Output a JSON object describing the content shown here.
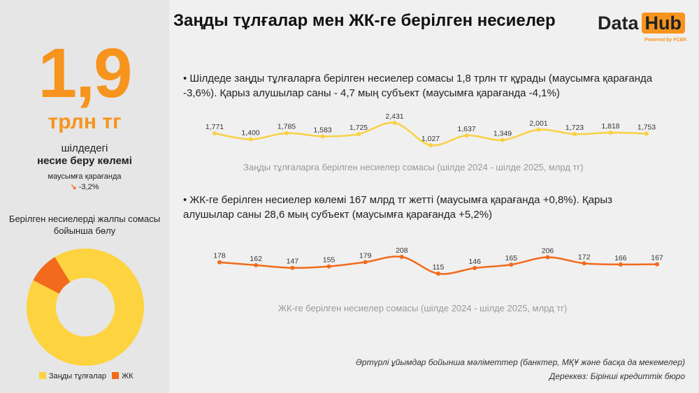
{
  "title": "Заңды тұлғалар мен ЖК-ге берілген несиелер",
  "logo": {
    "data": "Data",
    "hub": "Hub",
    "powered": "Powered by FCBK"
  },
  "kpi": {
    "value": "1,9",
    "unit": "трлн тг",
    "line1": "шілдедегі",
    "line2": "несие беру көлемі",
    "compare": "маусымға қарағанда",
    "change": "-3,2%",
    "arrow": "arrow-down-right-icon"
  },
  "donut_title": "Берілген несиелерді жалпы сомасы бойынша бөлу",
  "bullets": [
    "Шілдеде заңды тұлғаларға берілген несиелер сомасы 1,8 трлн тг құрады (маусымға қарағанда -3,6%). Қарыз алушылар саны - 4,7 мың субъект (маусымға қарағанда -4,1%)",
    "ЖК-ге берілген несиелер көлемі 167 млрд тг жетті (маусымға қарағанда +0,8%). Қарыз алушылар саны 28,6 мың субъект (маусымға қарағанда +5,2%)"
  ],
  "footer": {
    "note": "Әртүрлі ұйымдар бойынша мәліметтер (банктер, МҚҰ және басқа да мекемелер)",
    "source": "Дереккөз: Бірінші кредиттік бюро"
  },
  "chart_data": [
    {
      "type": "line",
      "title": "Заңды тұлғаларға берілген несиелер сомасы (шілде 2024 - шілде 2025, млрд тг)",
      "color": "#f9d142",
      "values": [
        1771,
        1400,
        1785,
        1583,
        1725,
        2431,
        1027,
        1637,
        1349,
        2001,
        1723,
        1818,
        1753
      ],
      "labels": [
        "1,771",
        "1,400",
        "1,785",
        "1,583",
        "1,725",
        "2,431",
        "1,027",
        "1,637",
        "1,349",
        "2,001",
        "1,723",
        "1,818",
        "1,753"
      ]
    },
    {
      "type": "line",
      "title": "ЖК-ге берілген несиелер сомасы (шілде 2024 - шілде 2025, млрд тг)",
      "color": "#f26a1b",
      "values": [
        178,
        162,
        147,
        155,
        179,
        208,
        115,
        146,
        165,
        206,
        172,
        166,
        167
      ],
      "labels": [
        "178",
        "162",
        "147",
        "155",
        "179",
        "208",
        "115",
        "146",
        "165",
        "206",
        "172",
        "166",
        "167"
      ]
    },
    {
      "type": "pie",
      "hole": true,
      "categories": [
        "Заңды тұлғалар",
        "ЖК"
      ],
      "values": [
        1753,
        167
      ],
      "colors": [
        "#fdd33f",
        "#f26a1b"
      ]
    }
  ]
}
